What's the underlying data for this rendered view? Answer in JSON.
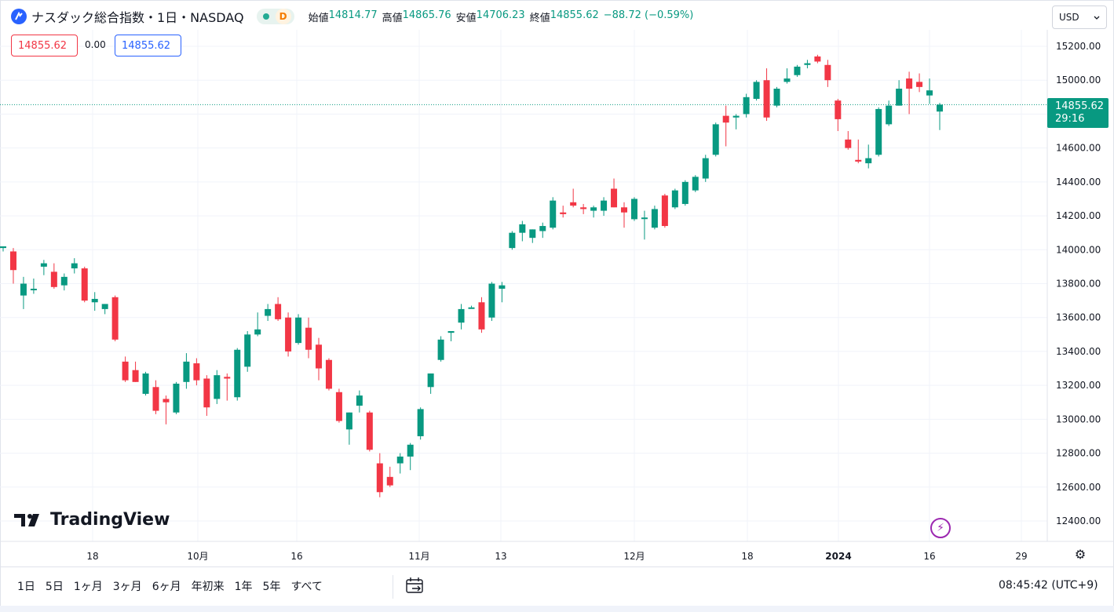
{
  "header": {
    "symbol_title": "ナスダック総合指数・1日・NASDAQ",
    "interval_badge": "D",
    "ohlc": [
      {
        "label": "始値",
        "value": "14814.77"
      },
      {
        "label": "高値",
        "value": "14865.76"
      },
      {
        "label": "安値",
        "value": "14706.23"
      },
      {
        "label": "終値",
        "value": "14855.62"
      }
    ],
    "change": "−88.72 (−0.59%)",
    "currency": "USD",
    "bid": "14855.62",
    "spread": "0.00",
    "ask": "14855.62"
  },
  "price_axis": {
    "last_price": "14855.62",
    "countdown": "29:16"
  },
  "watermark": "TradingView",
  "toolbar": {
    "ranges": [
      "1日",
      "5日",
      "1ヶ月",
      "3ヶ月",
      "6ヶ月",
      "年初来",
      "1年",
      "5年",
      "すべて"
    ],
    "clock": "08:45:42 (UTC+9)"
  },
  "colors": {
    "up": "#089981",
    "down": "#f23645",
    "accent": "#2962ff"
  },
  "chart_data": {
    "type": "candlestick",
    "y_ticks": [
      "15200.00",
      "15000.00",
      "14800.00",
      "14600.00",
      "14400.00",
      "14200.00",
      "14000.00",
      "13800.00",
      "13600.00",
      "13400.00",
      "13200.00",
      "13000.00",
      "12800.00",
      "12600.00",
      "12400.00"
    ],
    "x_ticks": [
      "18",
      "10月",
      "16",
      "11月",
      "13",
      "12月",
      "18",
      "2024",
      "16",
      "29"
    ],
    "ylim": [
      12300,
      15370
    ],
    "grid": true,
    "candles": [
      {
        "o": 14010,
        "h": 14020,
        "l": 13990,
        "c": 14020
      },
      {
        "o": 13990,
        "h": 14010,
        "l": 13800,
        "c": 13880
      },
      {
        "o": 13730,
        "h": 13840,
        "l": 13650,
        "c": 13800
      },
      {
        "o": 13770,
        "h": 13830,
        "l": 13740,
        "c": 13770
      },
      {
        "o": 13900,
        "h": 13940,
        "l": 13850,
        "c": 13920
      },
      {
        "o": 13870,
        "h": 13920,
        "l": 13770,
        "c": 13780
      },
      {
        "o": 13790,
        "h": 13860,
        "l": 13760,
        "c": 13840
      },
      {
        "o": 13890,
        "h": 13950,
        "l": 13860,
        "c": 13920
      },
      {
        "o": 13890,
        "h": 13900,
        "l": 13690,
        "c": 13700
      },
      {
        "o": 13690,
        "h": 13750,
        "l": 13640,
        "c": 13710
      },
      {
        "o": 13650,
        "h": 13680,
        "l": 13620,
        "c": 13680
      },
      {
        "o": 13720,
        "h": 13730,
        "l": 13460,
        "c": 13470
      },
      {
        "o": 13340,
        "h": 13370,
        "l": 13220,
        "c": 13230
      },
      {
        "o": 13290,
        "h": 13340,
        "l": 13220,
        "c": 13220
      },
      {
        "o": 13150,
        "h": 13280,
        "l": 13140,
        "c": 13270
      },
      {
        "o": 13190,
        "h": 13230,
        "l": 13030,
        "c": 13050
      },
      {
        "o": 13120,
        "h": 13140,
        "l": 12970,
        "c": 13100
      },
      {
        "o": 13040,
        "h": 13220,
        "l": 13030,
        "c": 13210
      },
      {
        "o": 13220,
        "h": 13390,
        "l": 13180,
        "c": 13340
      },
      {
        "o": 13330,
        "h": 13360,
        "l": 13200,
        "c": 13230
      },
      {
        "o": 13240,
        "h": 13260,
        "l": 13020,
        "c": 13070
      },
      {
        "o": 13120,
        "h": 13290,
        "l": 13090,
        "c": 13260
      },
      {
        "o": 13250,
        "h": 13270,
        "l": 13110,
        "c": 13240
      },
      {
        "o": 13130,
        "h": 13420,
        "l": 13110,
        "c": 13410
      },
      {
        "o": 13310,
        "h": 13520,
        "l": 13280,
        "c": 13500
      },
      {
        "o": 13500,
        "h": 13630,
        "l": 13490,
        "c": 13530
      },
      {
        "o": 13610,
        "h": 13680,
        "l": 13580,
        "c": 13650
      },
      {
        "o": 13680,
        "h": 13720,
        "l": 13580,
        "c": 13590
      },
      {
        "o": 13600,
        "h": 13630,
        "l": 13370,
        "c": 13400
      },
      {
        "o": 13450,
        "h": 13620,
        "l": 13440,
        "c": 13600
      },
      {
        "o": 13540,
        "h": 13600,
        "l": 13360,
        "c": 13410
      },
      {
        "o": 13440,
        "h": 13480,
        "l": 13230,
        "c": 13300
      },
      {
        "o": 13350,
        "h": 13360,
        "l": 13170,
        "c": 13180
      },
      {
        "o": 13160,
        "h": 13180,
        "l": 12980,
        "c": 12990
      },
      {
        "o": 12940,
        "h": 13040,
        "l": 12850,
        "c": 13040
      },
      {
        "o": 13080,
        "h": 13170,
        "l": 13040,
        "c": 13140
      },
      {
        "o": 13040,
        "h": 13050,
        "l": 12810,
        "c": 12820
      },
      {
        "o": 12740,
        "h": 12800,
        "l": 12540,
        "c": 12570
      },
      {
        "o": 12660,
        "h": 12720,
        "l": 12600,
        "c": 12610
      },
      {
        "o": 12740,
        "h": 12800,
        "l": 12680,
        "c": 12780
      },
      {
        "o": 12780,
        "h": 12860,
        "l": 12700,
        "c": 12850
      },
      {
        "o": 12900,
        "h": 13070,
        "l": 12880,
        "c": 13060
      },
      {
        "o": 13190,
        "h": 13270,
        "l": 13150,
        "c": 13270
      },
      {
        "o": 13350,
        "h": 13490,
        "l": 13340,
        "c": 13470
      },
      {
        "o": 13510,
        "h": 13520,
        "l": 13460,
        "c": 13520
      },
      {
        "o": 13570,
        "h": 13680,
        "l": 13530,
        "c": 13650
      },
      {
        "o": 13660,
        "h": 13670,
        "l": 13660,
        "c": 13660
      },
      {
        "o": 13690,
        "h": 13720,
        "l": 13510,
        "c": 13530
      },
      {
        "o": 13600,
        "h": 13810,
        "l": 13580,
        "c": 13800
      },
      {
        "o": 13770,
        "h": 13810,
        "l": 13690,
        "c": 13790
      },
      {
        "o": 14010,
        "h": 14110,
        "l": 14000,
        "c": 14100
      },
      {
        "o": 14100,
        "h": 14170,
        "l": 14050,
        "c": 14150
      },
      {
        "o": 14070,
        "h": 14120,
        "l": 14040,
        "c": 14120
      },
      {
        "o": 14110,
        "h": 14160,
        "l": 14070,
        "c": 14140
      },
      {
        "o": 14130,
        "h": 14310,
        "l": 14120,
        "c": 14290
      },
      {
        "o": 14220,
        "h": 14260,
        "l": 14190,
        "c": 14210
      },
      {
        "o": 14280,
        "h": 14360,
        "l": 14250,
        "c": 14260
      },
      {
        "o": 14250,
        "h": 14270,
        "l": 14210,
        "c": 14240
      },
      {
        "o": 14230,
        "h": 14260,
        "l": 14190,
        "c": 14250
      },
      {
        "o": 14230,
        "h": 14310,
        "l": 14200,
        "c": 14290
      },
      {
        "o": 14360,
        "h": 14420,
        "l": 14250,
        "c": 14250
      },
      {
        "o": 14250,
        "h": 14280,
        "l": 14130,
        "c": 14220
      },
      {
        "o": 14180,
        "h": 14310,
        "l": 14170,
        "c": 14300
      },
      {
        "o": 14190,
        "h": 14230,
        "l": 14060,
        "c": 14190
      },
      {
        "o": 14130,
        "h": 14260,
        "l": 14120,
        "c": 14240
      },
      {
        "o": 14320,
        "h": 14330,
        "l": 14130,
        "c": 14140
      },
      {
        "o": 14250,
        "h": 14360,
        "l": 14240,
        "c": 14350
      },
      {
        "o": 14270,
        "h": 14410,
        "l": 14260,
        "c": 14400
      },
      {
        "o": 14350,
        "h": 14440,
        "l": 14340,
        "c": 14430
      },
      {
        "o": 14420,
        "h": 14560,
        "l": 14400,
        "c": 14540
      },
      {
        "o": 14560,
        "h": 14750,
        "l": 14550,
        "c": 14740
      },
      {
        "o": 14790,
        "h": 14850,
        "l": 14610,
        "c": 14750
      },
      {
        "o": 14780,
        "h": 14800,
        "l": 14710,
        "c": 14790
      },
      {
        "o": 14800,
        "h": 14920,
        "l": 14780,
        "c": 14900
      },
      {
        "o": 14890,
        "h": 15000,
        "l": 14880,
        "c": 14990
      },
      {
        "o": 15000,
        "h": 15070,
        "l": 14760,
        "c": 14780
      },
      {
        "o": 14850,
        "h": 14960,
        "l": 14840,
        "c": 14950
      },
      {
        "o": 14990,
        "h": 15070,
        "l": 14980,
        "c": 15010
      },
      {
        "o": 15030,
        "h": 15090,
        "l": 15020,
        "c": 15080
      },
      {
        "o": 15090,
        "h": 15120,
        "l": 15070,
        "c": 15100
      },
      {
        "o": 15140,
        "h": 15150,
        "l": 15100,
        "c": 15110
      },
      {
        "o": 15090,
        "h": 15120,
        "l": 14960,
        "c": 15000
      },
      {
        "o": 14880,
        "h": 14890,
        "l": 14700,
        "c": 14770
      },
      {
        "o": 14650,
        "h": 14700,
        "l": 14590,
        "c": 14600
      },
      {
        "o": 14530,
        "h": 14650,
        "l": 14510,
        "c": 14520
      },
      {
        "o": 14510,
        "h": 14620,
        "l": 14480,
        "c": 14540
      },
      {
        "o": 14560,
        "h": 14840,
        "l": 14550,
        "c": 14830
      },
      {
        "o": 14740,
        "h": 14880,
        "l": 14730,
        "c": 14850
      },
      {
        "o": 14850,
        "h": 15000,
        "l": 14850,
        "c": 14950
      },
      {
        "o": 15010,
        "h": 15050,
        "l": 14800,
        "c": 14950
      },
      {
        "o": 14990,
        "h": 15040,
        "l": 14930,
        "c": 14960
      },
      {
        "o": 14910,
        "h": 15010,
        "l": 14860,
        "c": 14940
      },
      {
        "o": 14815,
        "h": 14866,
        "l": 14706,
        "c": 14856
      }
    ]
  }
}
